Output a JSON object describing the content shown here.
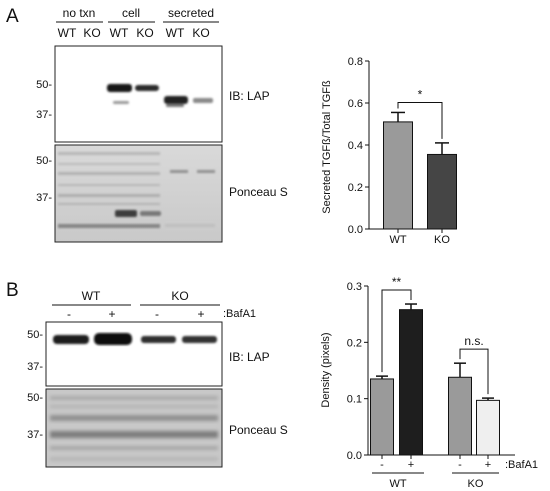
{
  "panelA": {
    "letter": "A",
    "blot": {
      "group_labels": [
        "no txn",
        "cell",
        "secreted"
      ],
      "lane_labels": [
        "WT",
        "KO",
        "WT",
        "KO",
        "WT",
        "KO"
      ],
      "top_markers": [
        "50-",
        "37-"
      ],
      "top_label": "IB: LAP",
      "bottom_markers": [
        "50-",
        "37-"
      ],
      "bottom_label": "Ponceau S"
    }
  },
  "panelB": {
    "letter": "B",
    "blot": {
      "group_labels": [
        "WT",
        "KO"
      ],
      "treatment_label": ":BafA1",
      "lane_signs": [
        "-",
        "+",
        "-",
        "+"
      ],
      "top_markers": [
        "50-",
        "37-"
      ],
      "top_label": "IB: LAP",
      "bottom_markers": [
        "50-",
        "37-"
      ],
      "bottom_label": "Ponceau S"
    }
  },
  "chart_data": [
    {
      "type": "bar",
      "ylabel": "Secreted TGFß/Total TGFß",
      "categories": [
        "WT",
        "KO"
      ],
      "values": [
        0.51,
        0.355
      ],
      "errors": [
        0.045,
        0.055
      ],
      "ylim": [
        0,
        0.8
      ],
      "yticks": [
        "0.0",
        "0.2",
        "0.4",
        "0.6",
        "0.8"
      ],
      "bar_colors": [
        "#9a9a9a",
        "#454545"
      ],
      "significance": [
        {
          "between": [
            0,
            1
          ],
          "label": "*"
        }
      ]
    },
    {
      "type": "bar",
      "ylabel": "Density (pixels)",
      "categories": [
        "-",
        "+",
        "-",
        "+"
      ],
      "values": [
        0.135,
        0.258,
        0.138,
        0.097
      ],
      "errors": [
        0.005,
        0.01,
        0.025,
        0.004
      ],
      "ylim": [
        0,
        0.3
      ],
      "yticks": [
        "0.0",
        "0.1",
        "0.2",
        "0.3"
      ],
      "bar_colors": [
        "#9a9a9a",
        "#1e1e1e",
        "#9a9a9a",
        "#efefef"
      ],
      "groups": [
        "WT",
        "KO"
      ],
      "treatment_label": ":BafA1",
      "significance": [
        {
          "between": [
            0,
            1
          ],
          "label": "**"
        },
        {
          "between": [
            2,
            3
          ],
          "label": "n.s."
        }
      ]
    }
  ]
}
